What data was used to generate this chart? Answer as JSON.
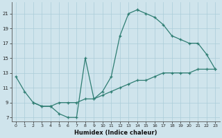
{
  "xlabel": "Humidex (Indice chaleur)",
  "bg_color": "#cfe4ec",
  "line_color": "#2e7d72",
  "grid_color": "#aacdd8",
  "xlim": [
    -0.5,
    23.5
  ],
  "ylim": [
    6.5,
    22.5
  ],
  "xticks": [
    0,
    1,
    2,
    3,
    4,
    5,
    6,
    7,
    8,
    9,
    10,
    11,
    12,
    13,
    14,
    15,
    16,
    17,
    18,
    19,
    20,
    21,
    22,
    23
  ],
  "yticks": [
    7,
    9,
    11,
    13,
    15,
    17,
    19,
    21
  ],
  "line1": [
    [
      0,
      12.5
    ],
    [
      1,
      10.5
    ],
    [
      2,
      9.0
    ],
    [
      3,
      8.5
    ],
    [
      4,
      8.5
    ],
    [
      5,
      7.5
    ],
    [
      6,
      7.0
    ],
    [
      7,
      7.0
    ],
    [
      8,
      15.0
    ],
    [
      9,
      9.5
    ],
    [
      10,
      10.5
    ],
    [
      11,
      12.5
    ],
    [
      12,
      18.0
    ],
    [
      13,
      21.0
    ],
    [
      14,
      21.5
    ]
  ],
  "line2": [
    [
      14,
      21.5
    ],
    [
      15,
      21.0
    ],
    [
      16,
      20.5
    ],
    [
      17,
      19.5
    ],
    [
      18,
      18.0
    ],
    [
      19,
      17.5
    ],
    [
      20,
      17.0
    ],
    [
      21,
      17.0
    ],
    [
      22,
      15.5
    ],
    [
      23,
      13.5
    ]
  ],
  "line3": [
    [
      2,
      9.0
    ],
    [
      3,
      8.5
    ],
    [
      4,
      8.5
    ],
    [
      5,
      9.0
    ],
    [
      6,
      9.0
    ],
    [
      7,
      9.0
    ],
    [
      8,
      9.5
    ],
    [
      9,
      9.5
    ],
    [
      10,
      10.0
    ],
    [
      11,
      10.5
    ],
    [
      12,
      11.0
    ],
    [
      13,
      11.5
    ],
    [
      14,
      12.0
    ],
    [
      15,
      12.0
    ],
    [
      16,
      12.5
    ],
    [
      17,
      13.0
    ],
    [
      18,
      13.0
    ],
    [
      19,
      13.0
    ],
    [
      20,
      13.0
    ],
    [
      21,
      13.5
    ],
    [
      22,
      13.5
    ],
    [
      23,
      13.5
    ]
  ],
  "figsize": [
    3.2,
    2.0
  ],
  "dpi": 100
}
